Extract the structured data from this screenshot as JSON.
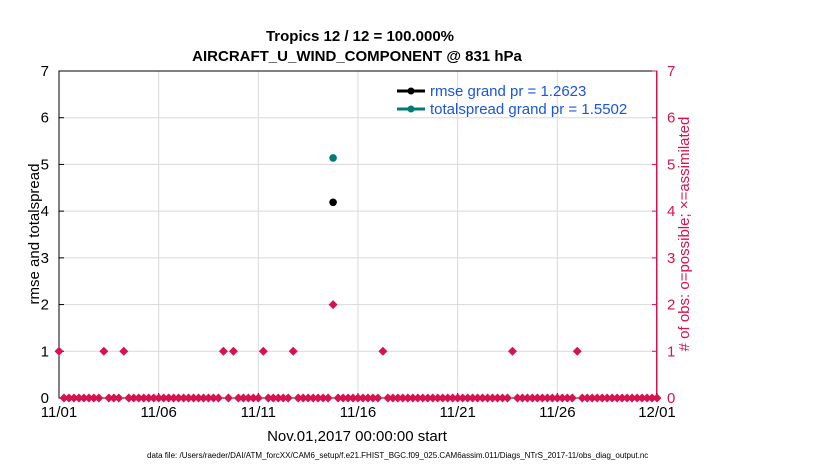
{
  "chart_data": {
    "type": "scatter",
    "title": "Tropics 12 / 12 = 100.000%",
    "subtitle": "AIRCRAFT_U_WIND_COMPONENT @ 831 hPa",
    "xlabel": "Nov.01,2017 00:00:00 start",
    "ylabel": "rmse and totalspread",
    "ylabel_right": "# of obs: o=possible; ×=assimilated",
    "xlim": [
      0,
      30
    ],
    "ylim": [
      0,
      7
    ],
    "ylim_right": [
      0,
      7
    ],
    "x_ticks": [
      {
        "value": 0,
        "label": "11/01"
      },
      {
        "value": 5,
        "label": "11/06"
      },
      {
        "value": 10,
        "label": "11/11"
      },
      {
        "value": 15,
        "label": "11/16"
      },
      {
        "value": 20,
        "label": "11/21"
      },
      {
        "value": 25,
        "label": "11/26"
      },
      {
        "value": 30,
        "label": "12/01"
      }
    ],
    "y_ticks": [
      0,
      1,
      2,
      3,
      4,
      5,
      6,
      7
    ],
    "y_ticks_right": [
      0,
      1,
      2,
      3,
      4,
      5,
      6,
      7
    ],
    "grid": true,
    "legend_position": "top-right",
    "series": [
      {
        "name": "rmse",
        "legend": "rmse grand pr = 1.2623",
        "color": "#000000",
        "axis": "left",
        "x": [
          13.75
        ],
        "y": [
          4.19
        ]
      },
      {
        "name": "totalspread",
        "legend": "totalspread grand pr = 1.5502",
        "color": "#007a78",
        "axis": "left",
        "x": [
          13.75
        ],
        "y": [
          5.14
        ]
      },
      {
        "name": "obs_possible",
        "color": "#d6134f",
        "axis": "right",
        "marker": "diamond",
        "bin_start": 0,
        "bin_width": 0.25,
        "bins": 121,
        "nonzero": [
          {
            "x": 0,
            "y": 1
          },
          {
            "x": 2.25,
            "y": 1
          },
          {
            "x": 3.25,
            "y": 1
          },
          {
            "x": 8.25,
            "y": 1
          },
          {
            "x": 8.75,
            "y": 1
          },
          {
            "x": 10.25,
            "y": 1
          },
          {
            "x": 11.75,
            "y": 1
          },
          {
            "x": 13.75,
            "y": 2
          },
          {
            "x": 16.25,
            "y": 1
          },
          {
            "x": 22.75,
            "y": 1
          },
          {
            "x": 26,
            "y": 1
          }
        ]
      }
    ],
    "footnote": "data file: /Users/raeder/DAI/ATM_forcXX/CAM6_setup/f.e21.FHIST_BGC.f09_025.CAM6assim.011/Diags_NTrS_2017-11/obs_diag_output.nc"
  }
}
